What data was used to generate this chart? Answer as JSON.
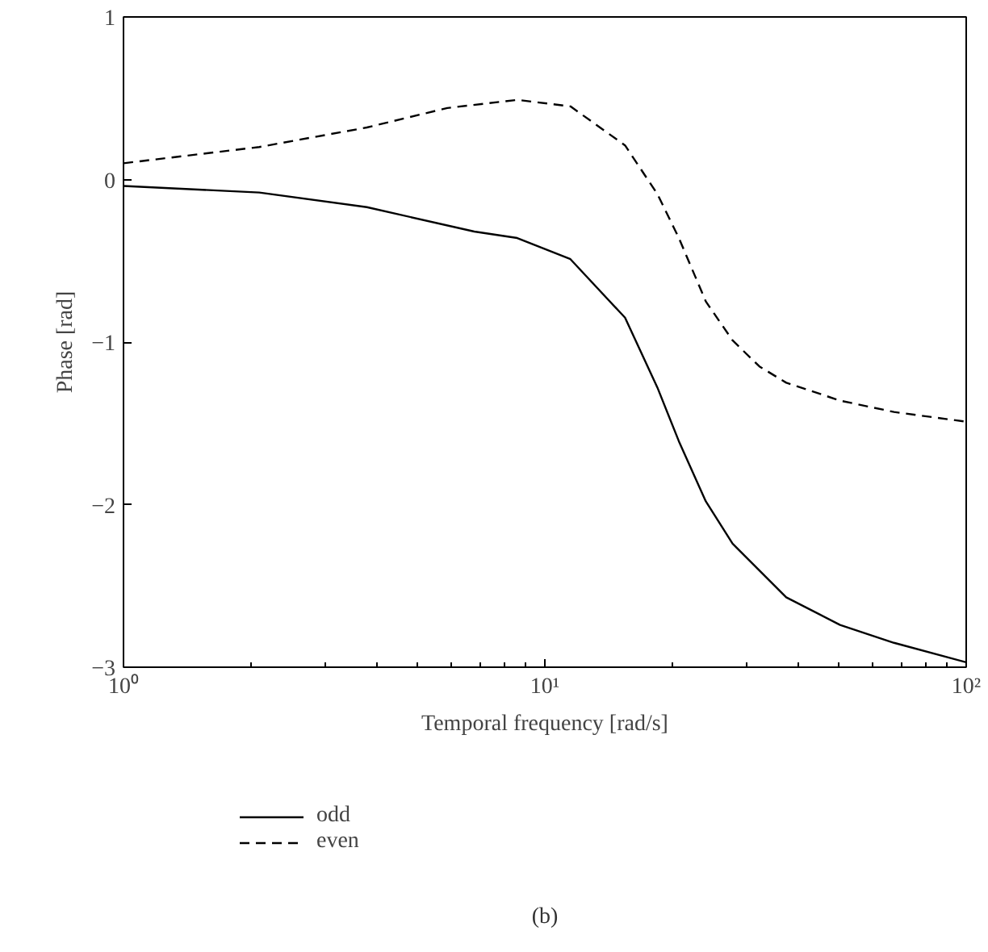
{
  "chart_data": {
    "type": "line",
    "xlabel": "Temporal frequency [rad/s]",
    "ylabel": "Phase [rad]",
    "log": "x",
    "xlim": [
      1,
      100
    ],
    "ylim": [
      -3,
      1
    ],
    "xticks": [
      {
        "value": 1,
        "label": "10⁰"
      },
      {
        "value": 10,
        "label": "10¹"
      },
      {
        "value": 100,
        "label": "10²"
      }
    ],
    "yticks": [
      {
        "value": -3,
        "label": "−3"
      },
      {
        "value": -2,
        "label": "−2"
      },
      {
        "value": -1,
        "label": "−1"
      },
      0,
      1
    ],
    "legend": "bottom",
    "annotations": [
      "(b)"
    ],
    "series": [
      {
        "name": "odd",
        "color": "#000000",
        "line_style": "solid",
        "x": [
          1,
          2.1,
          3.78,
          6.8,
          8.6,
          11.5,
          15.5,
          18.5,
          20.8,
          24.1,
          27.9,
          37.4,
          50.2,
          67.4,
          100
        ],
        "values": [
          -0.04,
          -0.08,
          -0.17,
          -0.32,
          -0.36,
          -0.49,
          -0.85,
          -1.28,
          -1.61,
          -1.98,
          -2.24,
          -2.57,
          -2.74,
          -2.85,
          -2.97
        ]
      },
      {
        "name": "even",
        "color": "#000000",
        "line_style": "dashed",
        "x": [
          1,
          2.1,
          3.78,
          5.87,
          8.6,
          11.5,
          15.5,
          18.5,
          20.8,
          24.1,
          27.9,
          32.3,
          37.4,
          50.2,
          67.4,
          100
        ],
        "values": [
          0.1,
          0.2,
          0.32,
          0.44,
          0.49,
          0.45,
          0.21,
          -0.09,
          -0.36,
          -0.75,
          -0.99,
          -1.15,
          -1.25,
          -1.36,
          -1.43,
          -1.49
        ]
      }
    ]
  }
}
